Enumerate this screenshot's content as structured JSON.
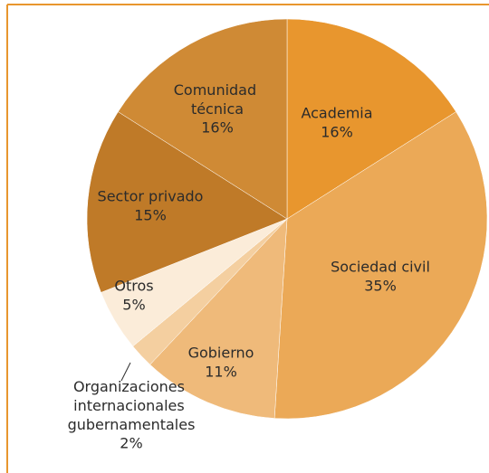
{
  "chart_data": {
    "type": "pie",
    "categories": [
      "Academia",
      "Sociedad civil",
      "Gobierno",
      "Organizaciones internacionales gubernamentales",
      "Otros",
      "Sector privado",
      "Comunidad técnica"
    ],
    "values": [
      16,
      35,
      11,
      2,
      5,
      15,
      16
    ],
    "value_labels": [
      "16%",
      "35%",
      "11%",
      "2%",
      "5%",
      "15%",
      "16%"
    ],
    "colors": [
      "#e8962e",
      "#eba957",
      "#efba7a",
      "#f4cfa0",
      "#fbecd9",
      "#bf7a28",
      "#cf8a35"
    ]
  }
}
